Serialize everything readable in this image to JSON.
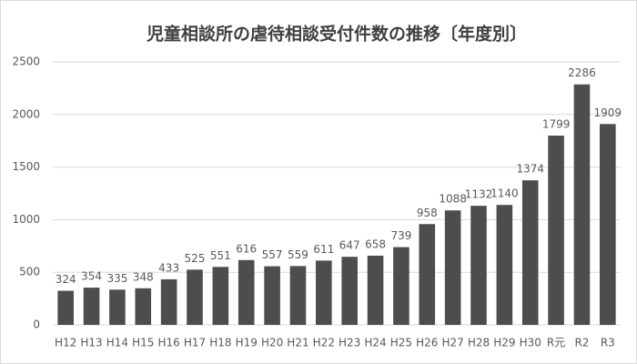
{
  "chart_data": {
    "type": "bar",
    "title": "児童相談所の虐待相談受付件数の推移〔年度別〕",
    "categories": [
      "H12",
      "H13",
      "H14",
      "H15",
      "H16",
      "H17",
      "H18",
      "H19",
      "H20",
      "H21",
      "H22",
      "H23",
      "H24",
      "H25",
      "H26",
      "H27",
      "H28",
      "H29",
      "H30",
      "R元",
      "R2",
      "R3"
    ],
    "values": [
      324,
      354,
      335,
      348,
      433,
      525,
      551,
      616,
      557,
      559,
      611,
      647,
      658,
      739,
      958,
      1088,
      1132,
      1140,
      1374,
      1799,
      2286,
      1909
    ],
    "color": "#4d4d4d",
    "ylim": [
      0,
      2500
    ],
    "yticks": [
      0,
      500,
      1000,
      1500,
      2000,
      2500
    ],
    "grid": true
  }
}
